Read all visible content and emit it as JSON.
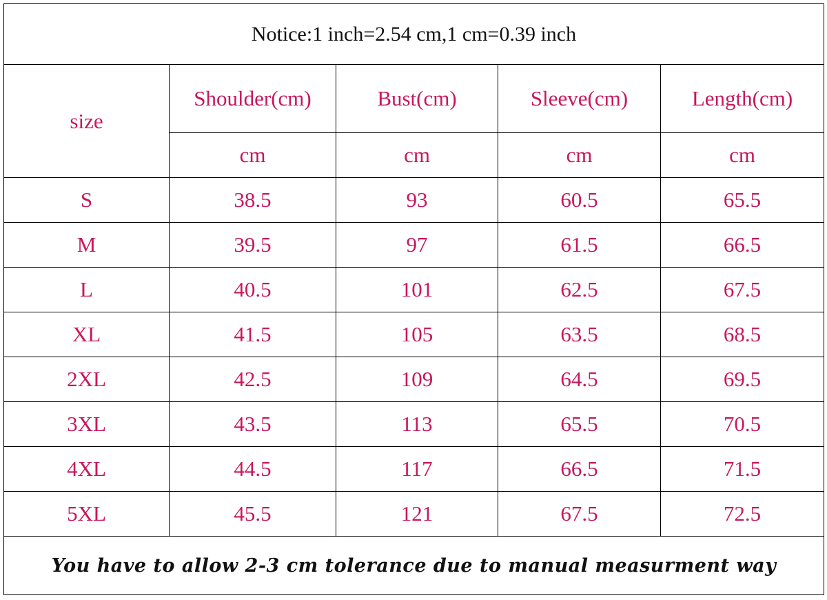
{
  "header": {
    "notice": "Notice:1 inch=2.54 cm,1 cm=0.39 inch"
  },
  "table": {
    "columns": [
      "size",
      "Shoulder(cm)",
      "Bust(cm)",
      "Sleeve(cm)",
      "Length(cm)"
    ],
    "units": [
      "cm",
      "cm",
      "cm",
      "cm"
    ],
    "rows": [
      [
        "S",
        38.5,
        93,
        60.5,
        65.5
      ],
      [
        "M",
        39.5,
        97,
        61.5,
        66.5
      ],
      [
        "L",
        40.5,
        101,
        62.5,
        67.5
      ],
      [
        "XL",
        41.5,
        105,
        63.5,
        68.5
      ],
      [
        "2XL",
        42.5,
        109,
        64.5,
        69.5
      ],
      [
        "3XL",
        43.5,
        113,
        65.5,
        70.5
      ],
      [
        "4XL",
        44.5,
        117,
        66.5,
        71.5
      ],
      [
        "5XL",
        45.5,
        121,
        67.5,
        72.5
      ]
    ]
  },
  "footer": {
    "note": "You have to allow 2-3 cm tolerance due to manual measurment way"
  }
}
